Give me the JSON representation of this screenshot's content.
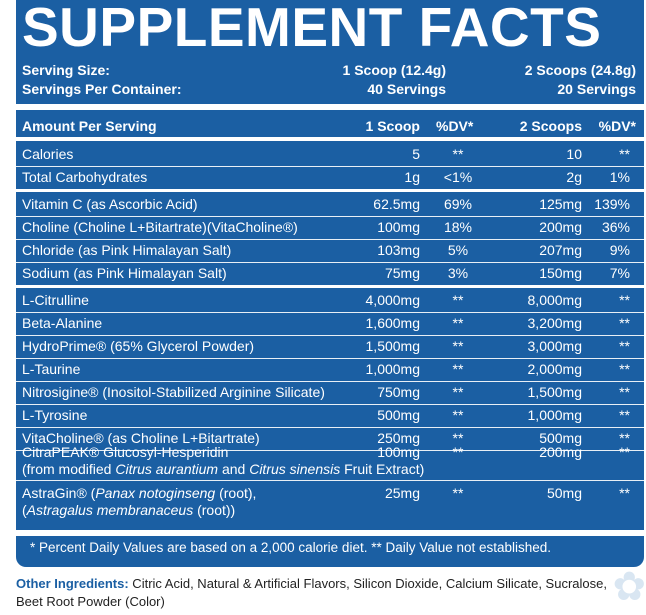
{
  "title": "SUPPLEMENT FACTS",
  "serving": {
    "size_label": "Serving Size:",
    "size_1": "1 Scoop (12.4g)",
    "size_2": "2 Scoops (24.8g)",
    "per_container_label": "Servings Per Container:",
    "per_container_1": "40 Servings",
    "per_container_2": "20 Servings"
  },
  "header": {
    "amount": "Amount Per Serving",
    "col1": "1 Scoop",
    "dv1": "%DV*",
    "col2": "2 Scoops",
    "dv2": "%DV*"
  },
  "rows": [
    {
      "name": "Calories",
      "a1": "5",
      "dv1": "**",
      "a2": "10",
      "dv2": "**"
    },
    {
      "name": "Total Carbohydrates",
      "a1": "1g",
      "dv1": "<1%",
      "a2": "2g",
      "dv2": "1%"
    },
    {
      "name": "Vitamin C (as Ascorbic Acid)",
      "a1": "62.5mg",
      "dv1": "69%",
      "a2": "125mg",
      "dv2": "139%"
    },
    {
      "name": "Choline (Choline L+Bitartrate)(VitaCholine®)",
      "a1": "100mg",
      "dv1": "18%",
      "a2": "200mg",
      "dv2": "36%"
    },
    {
      "name": "Chloride (as Pink Himalayan Salt)",
      "a1": "103mg",
      "dv1": "5%",
      "a2": "207mg",
      "dv2": "9%"
    },
    {
      "name": "Sodium (as Pink Himalayan Salt)",
      "a1": "75mg",
      "dv1": "3%",
      "a2": "150mg",
      "dv2": "7%"
    },
    {
      "name": "L-Citrulline",
      "a1": "4,000mg",
      "dv1": "**",
      "a2": "8,000mg",
      "dv2": "**"
    },
    {
      "name": "Beta-Alanine",
      "a1": "1,600mg",
      "dv1": "**",
      "a2": "3,200mg",
      "dv2": "**"
    },
    {
      "name": "HydroPrime® (65% Glycerol Powder)",
      "a1": "1,500mg",
      "dv1": "**",
      "a2": "3,000mg",
      "dv2": "**"
    },
    {
      "name": "L-Taurine",
      "a1": "1,000mg",
      "dv1": "**",
      "a2": "2,000mg",
      "dv2": "**"
    },
    {
      "name": "Nitrosigine® (Inositol-Stabilized Arginine Silicate)",
      "a1": "750mg",
      "dv1": "**",
      "a2": "1,500mg",
      "dv2": "**"
    },
    {
      "name": "L-Tyrosine",
      "a1": "500mg",
      "dv1": "**",
      "a2": "1,000mg",
      "dv2": "**"
    },
    {
      "name": "VitaCholine® (as Choline L+Bitartrate)",
      "a1": "250mg",
      "dv1": "**",
      "a2": "500mg",
      "dv2": "**"
    }
  ],
  "citrapeak": {
    "line1": "CitraPEAK® Glucosyl-Hesperidin",
    "line2_pre": "(from modified ",
    "line2_i1": "Citrus aurantium",
    "line2_mid": " and ",
    "line2_i2": "Citrus sinensis",
    "line2_post": " Fruit Extract)",
    "a1": "100mg",
    "dv1": "**",
    "a2": "200mg",
    "dv2": "**"
  },
  "astragin": {
    "line1_pre": "AstraGin® (",
    "line1_i": "Panax notoginseng",
    "line1_post": " (root),",
    "line2_pre": "(",
    "line2_i": "Astragalus membranaceus",
    "line2_post": " (root))",
    "a1": "25mg",
    "dv1": "**",
    "a2": "50mg",
    "dv2": "**"
  },
  "footnote": "* Percent Daily Values are based on a 2,000 calorie diet. ** Daily Value not established.",
  "other_ingredients": {
    "label": "Other Ingredients:",
    "text": " Citric Acid, Natural & Artificial Flavors, Silicon Dioxide, Calcium Silicate, Sucralose, Beet Root Powder (Color)"
  },
  "colors": {
    "panel": "#1b5fa3",
    "text": "#ffffff",
    "label_accent": "#1b5fa3"
  }
}
